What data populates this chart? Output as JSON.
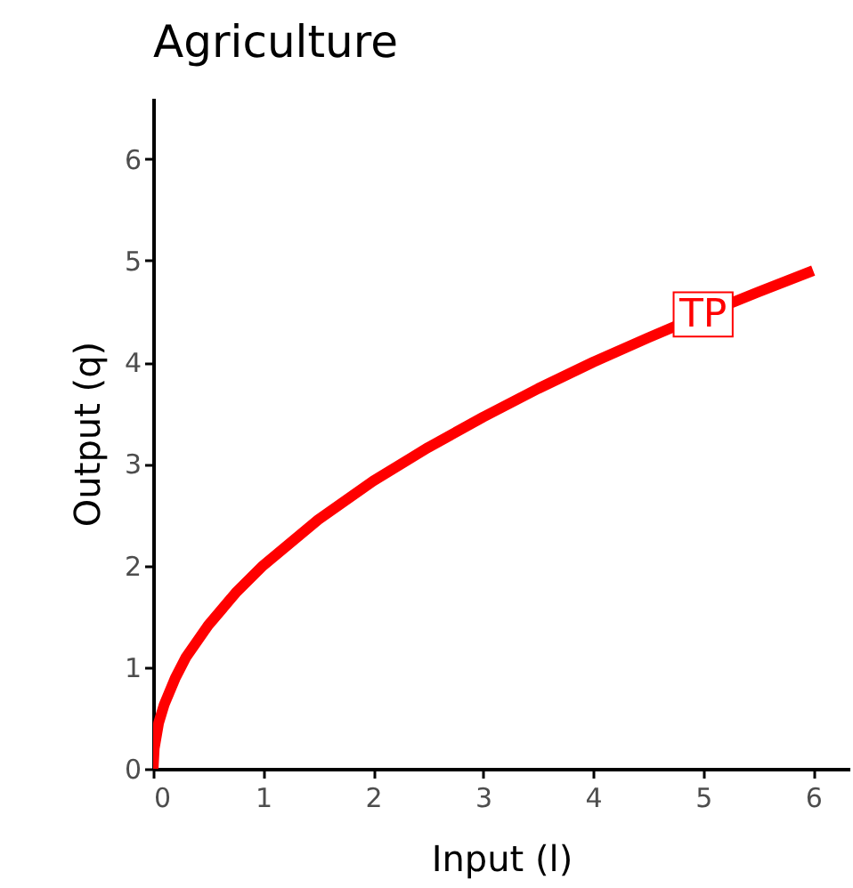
{
  "chart_data": {
    "type": "line",
    "title": "Agriculture",
    "xlabel": "Input (l)",
    "ylabel": "Output (q)",
    "x": [
      0,
      0.01,
      0.05,
      0.1,
      0.2,
      0.3,
      0.5,
      0.75,
      1,
      1.5,
      2,
      2.5,
      3,
      3.5,
      4,
      4.5,
      5,
      5.5,
      6
    ],
    "series": [
      {
        "color": "#ff0000",
        "values": [
          0,
          0.2,
          0.45,
          0.63,
          0.89,
          1.1,
          1.41,
          1.73,
          2,
          2.45,
          2.83,
          3.16,
          3.46,
          3.74,
          4,
          4.24,
          4.47,
          4.69,
          4.9
        ]
      }
    ],
    "xlim": [
      0,
      6.33
    ],
    "ylim": [
      0,
      6.6
    ],
    "xticks": [
      0,
      1,
      2,
      3,
      4,
      5,
      6
    ],
    "yticks": [
      0,
      1,
      2,
      3,
      4,
      5,
      6
    ],
    "annotations": [
      {
        "text": "TP",
        "x": 5,
        "y": 4.47
      }
    ],
    "grid": false
  }
}
